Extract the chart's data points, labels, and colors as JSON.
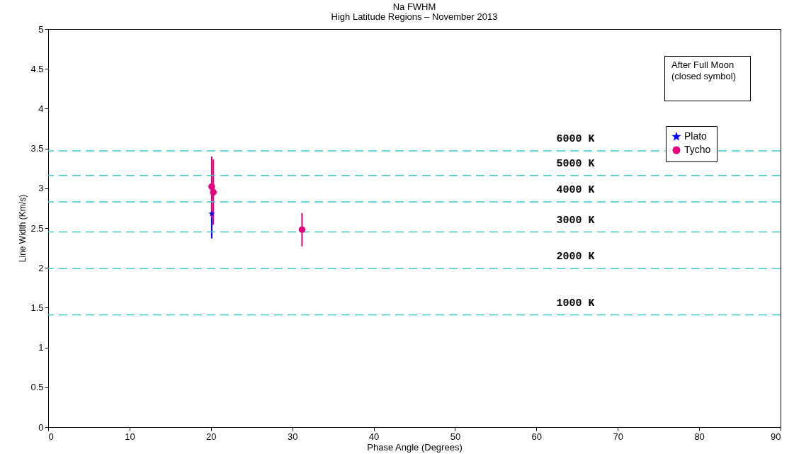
{
  "chart_data": {
    "type": "scatter",
    "title": "Na FWHM",
    "subtitle": "High Latitude Regions – November 2013",
    "xlabel": "Phase Angle (Degrees)",
    "ylabel": "Line Width (Km/s)",
    "xlim": [
      0,
      90
    ],
    "xticks": [
      0,
      10,
      20,
      30,
      40,
      50,
      60,
      70,
      80,
      90
    ],
    "ylim": [
      0,
      5
    ],
    "yticks": [
      0,
      0.5,
      1,
      1.5,
      2,
      2.5,
      3,
      3.5,
      4,
      4.5,
      5
    ],
    "grid": false,
    "legend": "top right",
    "annotations": [
      "After Full Moon (closed symbol)"
    ],
    "series": [
      {
        "name": "Plato",
        "color": "#0000ff",
        "marker": "star",
        "x": [
          20.1
        ],
        "values": [
          2.68
        ],
        "errors": [
          0.31
        ]
      },
      {
        "name": "Tycho",
        "color": "#e6007e",
        "marker": "circle",
        "x": [
          20.1,
          20.3,
          31.2
        ],
        "values": [
          3.02,
          2.95,
          2.48
        ],
        "errors": [
          0.38,
          0.41,
          0.21
        ]
      }
    ],
    "ref_lines": [
      {
        "axis": "y",
        "value": 3.47,
        "label": "6000 K",
        "color": "#40c8c8",
        "line_style": "dashed"
      },
      {
        "axis": "y",
        "value": 3.16,
        "label": "5000 K",
        "color": "#40c8c8",
        "line_style": "dashed"
      },
      {
        "axis": "y",
        "value": 2.83,
        "label": "4000 K",
        "color": "#40c8c8",
        "line_style": "dashed"
      },
      {
        "axis": "y",
        "value": 2.45,
        "label": "3000 K",
        "color": "#40c8c8",
        "line_style": "dashed"
      },
      {
        "axis": "y",
        "value": 1.99,
        "label": "2000 K",
        "color": "#40c8c8",
        "line_style": "dashed"
      },
      {
        "axis": "y",
        "value": 1.41,
        "label": "1000 K",
        "color": "#40c8c8",
        "line_style": "dashed"
      }
    ]
  }
}
